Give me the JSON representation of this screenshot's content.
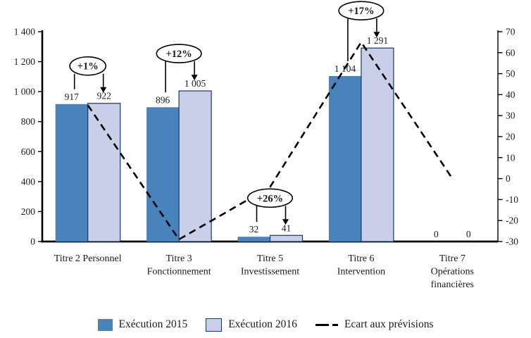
{
  "chart_data": {
    "type": "bar",
    "subtype": "grouped-bars-with-dashed-line-on-secondary-axis",
    "title": "",
    "categories": [
      "Titre 2 Personnel",
      "Titre 3 Fonctionnement",
      "Titre 5 Investissement",
      "Titre 6 Intervention",
      "Titre 7 Opérations financières"
    ],
    "category_label_lines": [
      [
        "Titre 2 Personnel"
      ],
      [
        "Titre 3",
        "Fonctionnement"
      ],
      [
        "Titre 5",
        "Investissement"
      ],
      [
        "Titre 6",
        "Intervention"
      ],
      [
        "Titre 7",
        "Opérations",
        "financières"
      ]
    ],
    "series": [
      {
        "name": "Exécution 2015",
        "type": "bar",
        "axis": "left",
        "values": [
          917,
          896,
          32,
          1104,
          0
        ],
        "value_labels": [
          "917",
          "896",
          "32",
          "1 104",
          "0"
        ],
        "color": "#4883BB"
      },
      {
        "name": "Exécution 2016",
        "type": "bar",
        "axis": "left",
        "values": [
          922,
          1005,
          41,
          1291,
          0
        ],
        "value_labels": [
          "922",
          "1 005",
          "41",
          "1 291",
          "0"
        ],
        "color": "#C9CFE8",
        "border_color": "#17375D"
      },
      {
        "name": "Ecart aux prévisions",
        "type": "line",
        "axis": "right",
        "dashed": true,
        "values": [
          35,
          -29,
          -4,
          65,
          0
        ],
        "color": "#000000"
      }
    ],
    "annotations": [
      {
        "label": "+1%",
        "category_index": 0
      },
      {
        "label": "+12%",
        "category_index": 1
      },
      {
        "label": "+26%",
        "category_index": 2
      },
      {
        "label": "+17%",
        "category_index": 3
      }
    ],
    "axes": {
      "left": {
        "min": 0,
        "max": 1400,
        "step": 200,
        "tick_labels": [
          "0",
          "200",
          "400",
          "600",
          "800",
          "1 000",
          "1 200",
          "1 400"
        ]
      },
      "right": {
        "min": -30,
        "max": 70,
        "step": 10,
        "tick_labels": [
          "-30",
          "-20",
          "-10",
          "0",
          "10",
          "20",
          "30",
          "40",
          "50",
          "60",
          "70"
        ]
      }
    },
    "grid": false,
    "legend_position": "bottom"
  },
  "legend": {
    "items": [
      {
        "label": "Exécution 2015",
        "swatch": "filled-square",
        "color": "#4883BB"
      },
      {
        "label": "Exécution 2016",
        "swatch": "outlined-square",
        "color": "#C9CFE8",
        "border_color": "#17375D"
      },
      {
        "label": "Ecart aux prévisions",
        "swatch": "dashed-line",
        "color": "#000000"
      }
    ]
  },
  "colors": {
    "background": "#FFFFFF",
    "axis": "#000000",
    "text": "#1A1A1A",
    "bar_2015": "#4883BB",
    "bar_2016": "#C9CFE8",
    "bar_2016_border": "#17375D"
  }
}
